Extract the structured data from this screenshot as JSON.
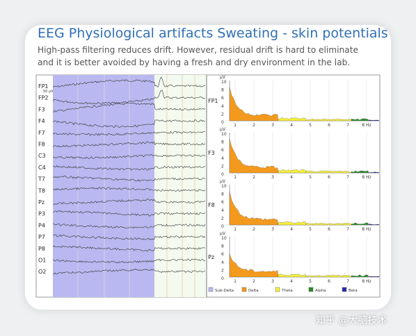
{
  "header": {
    "title": "EEG Physiological artifacts Sweating - skin potentials",
    "subtitle_lines": [
      "High-pass filtering reduces drift. However, residual drift is hard to eliminate",
      "and it is better avoided by having a fresh and dry environment in the lab."
    ]
  },
  "eeg": {
    "scale_label": "50 µV",
    "channels": [
      "FP1",
      "FP2",
      "F3",
      "F4",
      "F7",
      "F8",
      "C3",
      "C4",
      "T7",
      "T8",
      "Pz",
      "P3",
      "P4",
      "P7",
      "P8",
      "O1",
      "O2"
    ]
  },
  "spectra": {
    "unit": "µV",
    "y_ticks": [
      "10",
      "8",
      "6",
      "4",
      "2",
      "0"
    ],
    "x_ticks": [
      "1",
      "2",
      "3",
      "4",
      "5",
      "6",
      "7",
      "8 Hz"
    ],
    "panels": [
      "FP1",
      "F3",
      "F8",
      "Pz"
    ]
  },
  "legend": [
    "Sub-Delta",
    "Delta",
    "Theta",
    "Alpha",
    "Beta"
  ],
  "watermark": "知乎 @大脑技术"
}
